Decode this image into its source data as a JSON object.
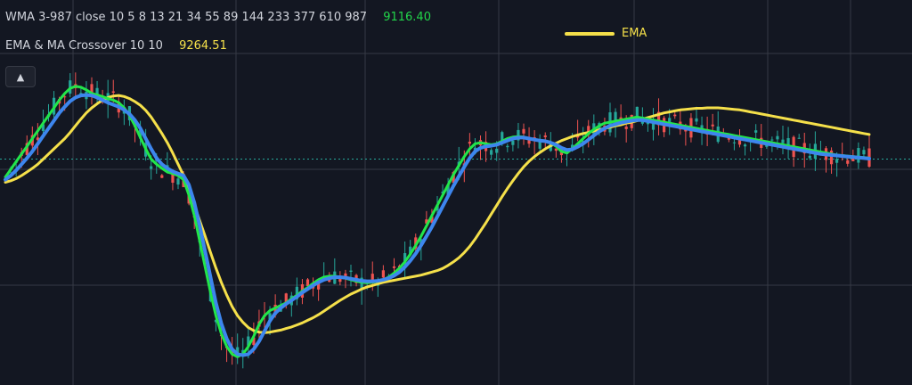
{
  "indicators": [
    {
      "label": "WMA 3-987 close 10 5 8 13 21 34 55 89 144 233 377 610 987",
      "value": "9116.40",
      "value_color": "#22d64a"
    },
    {
      "label": "EMA & MA Crossover 10 10",
      "value": "9264.51",
      "value_color": "#f5e04a"
    }
  ],
  "colors": {
    "background": "#131722",
    "grid": "#363a45",
    "up": "#26a69a",
    "down": "#ef5350",
    "ema": "#f5e04a",
    "green_line": "#22e64a",
    "blue_line": "#3d86ee",
    "price_line": "#26a69a"
  },
  "icons": {
    "collapse": "chevron-up-icon"
  },
  "chart_data": {
    "type": "line",
    "title": "",
    "xlabel": "",
    "ylabel": "",
    "grid": true,
    "legend_placement": "top-center",
    "ylim": [
      8850,
      9600
    ],
    "current_price": 9290,
    "x": [
      0,
      1,
      2,
      3,
      4,
      5,
      6,
      7,
      8,
      9,
      10,
      11,
      12,
      13,
      14,
      15,
      16,
      17,
      18,
      19,
      20,
      21,
      22,
      23,
      24,
      25,
      26,
      27,
      28,
      29,
      30,
      31,
      32,
      33,
      34,
      35,
      36,
      37,
      38,
      39,
      40,
      41,
      42,
      43,
      44,
      45,
      46,
      47,
      48,
      49,
      50,
      51,
      52,
      53,
      54,
      55,
      56,
      57,
      58,
      59,
      60,
      61,
      62,
      63,
      64,
      65,
      66,
      67,
      68,
      69,
      70,
      71,
      72,
      73,
      74,
      75,
      76,
      77,
      78,
      79,
      80,
      81,
      82,
      83,
      84,
      85,
      86,
      87,
      88,
      89,
      90,
      91,
      92,
      93,
      94,
      95,
      96,
      97,
      98,
      99,
      100,
      101,
      102,
      103,
      104,
      105,
      106,
      107,
      108,
      109,
      110,
      111,
      112,
      113,
      114,
      115,
      116,
      117,
      118,
      119,
      120,
      121,
      122,
      123,
      124,
      125,
      126,
      127,
      128,
      129,
      130,
      131,
      132,
      133,
      134,
      135,
      136,
      137,
      138,
      139,
      140,
      141,
      142,
      143,
      144,
      145,
      146,
      147,
      148,
      149,
      150,
      151,
      152,
      153,
      154,
      155,
      156,
      157,
      158,
      159,
      160
    ],
    "series": [
      {
        "name": "EMA",
        "color": "#f5e04a",
        "values": [
          9245,
          9248,
          9252,
          9258,
          9265,
          9272,
          9280,
          9290,
          9300,
          9310,
          9320,
          9330,
          9342,
          9355,
          9368,
          9380,
          9390,
          9398,
          9405,
          9410,
          9413,
          9414,
          9412,
          9408,
          9402,
          9395,
          9385,
          9372,
          9356,
          9340,
          9322,
          9302,
          9280,
          9258,
          9230,
          9200,
          9170,
          9140,
          9108,
          9078,
          9050,
          9025,
          9003,
          8985,
          8972,
          8962,
          8956,
          8953,
          8952,
          8953,
          8955,
          8957,
          8960,
          8963,
          8967,
          8971,
          8976,
          8981,
          8987,
          8994,
          9001,
          9008,
          9015,
          9021,
          9027,
          9032,
          9037,
          9041,
          9044,
          9047,
          9050,
          9052,
          9054,
          9056,
          9058,
          9060,
          9062,
          9064,
          9067,
          9070,
          9073,
          9077,
          9083,
          9090,
          9098,
          9108,
          9120,
          9134,
          9150,
          9166,
          9183,
          9200,
          9217,
          9233,
          9248,
          9262,
          9275,
          9286,
          9295,
          9303,
          9310,
          9316,
          9321,
          9326,
          9330,
          9334,
          9337,
          9340,
          9342,
          9345,
          9347,
          9350,
          9352,
          9355,
          9357,
          9360,
          9362,
          9365,
          9368,
          9371,
          9374,
          9377,
          9380,
          9382,
          9384,
          9386,
          9387,
          9388,
          9389,
          9389,
          9390,
          9390,
          9390,
          9389,
          9388,
          9387,
          9386,
          9384,
          9382,
          9380,
          9378,
          9376,
          9374,
          9372,
          9370,
          9368,
          9366,
          9364,
          9362,
          9360,
          9358,
          9356,
          9354,
          9352,
          9350,
          9348,
          9346,
          9344,
          9342,
          9340,
          9338
        ]
      },
      {
        "name": "",
        "color": "#22e64a",
        "values": [
          9255,
          9270,
          9285,
          9300,
          9315,
          9330,
          9345,
          9360,
          9375,
          9390,
          9405,
          9418,
          9428,
          9432,
          9430,
          9425,
          9418,
          9415,
          9412,
          9408,
          9405,
          9400,
          9390,
          9375,
          9355,
          9332,
          9310,
          9290,
          9280,
          9272,
          9265,
          9262,
          9258,
          9250,
          9220,
          9180,
          9130,
          9080,
          9030,
          8985,
          8950,
          8925,
          8910,
          8905,
          8910,
          8925,
          8945,
          8968,
          8985,
          8995,
          9000,
          9005,
          9010,
          9018,
          9025,
          9033,
          9040,
          9048,
          9055,
          9060,
          9062,
          9062,
          9060,
          9058,
          9055,
          9052,
          9050,
          9049,
          9050,
          9052,
          9055,
          9060,
          9068,
          9078,
          9090,
          9105,
          9122,
          9140,
          9160,
          9180,
          9200,
          9220,
          9240,
          9260,
          9278,
          9295,
          9310,
          9320,
          9322,
          9320,
          9318,
          9320,
          9325,
          9330,
          9333,
          9334,
          9333,
          9330,
          9328,
          9326,
          9325,
          9322,
          9315,
          9305,
          9302,
          9310,
          9320,
          9330,
          9340,
          9348,
          9355,
          9360,
          9362,
          9364,
          9366,
          9368,
          9370,
          9372,
          9370,
          9368,
          9366,
          9364,
          9362,
          9360,
          9358,
          9356,
          9354,
          9352,
          9350,
          9348,
          9346,
          9344,
          9342,
          9340,
          9338,
          9336,
          9334,
          9332,
          9330,
          9328,
          9326,
          9324,
          9322,
          9320,
          9318,
          9316,
          9314,
          9312,
          9310,
          9308,
          9306,
          9304,
          9302,
          9300,
          9298,
          9297,
          9296,
          9295,
          9294,
          9293,
          9292
        ]
      },
      {
        "name": "",
        "color": "#3d86ee",
        "values": [
          9250,
          9258,
          9268,
          9280,
          9292,
          9305,
          9320,
          9335,
          9350,
          9365,
          9380,
          9392,
          9403,
          9410,
          9414,
          9415,
          9414,
          9410,
          9405,
          9400,
          9396,
          9392,
          9386,
          9378,
          9366,
          9350,
          9330,
          9310,
          9292,
          9280,
          9272,
          9266,
          9262,
          9258,
          9240,
          9205,
          9160,
          9110,
          9060,
          9010,
          8970,
          8940,
          8920,
          8910,
          8908,
          8910,
          8920,
          8935,
          8955,
          8975,
          8990,
          9000,
          9008,
          9015,
          9022,
          9030,
          9037,
          9044,
          9050,
          9055,
          9058,
          9060,
          9060,
          9059,
          9057,
          9055,
          9053,
          9052,
          9052,
          9053,
          9055,
          9058,
          9063,
          9070,
          9080,
          9092,
          9106,
          9122,
          9140,
          9158,
          9178,
          9198,
          9218,
          9238,
          9257,
          9275,
          9292,
          9305,
          9312,
          9315,
          9316,
          9318,
          9322,
          9326,
          9330,
          9332,
          9332,
          9330,
          9328,
          9326,
          9325,
          9322,
          9318,
          9312,
          9308,
          9309,
          9314,
          9320,
          9328,
          9336,
          9344,
          9350,
          9355,
          9358,
          9361,
          9363,
          9365,
          9366,
          9366,
          9364,
          9362,
          9360,
          9358,
          9356,
          9354,
          9352,
          9350,
          9348,
          9346,
          9344,
          9342,
          9340,
          9338,
          9336,
          9334,
          9332,
          9330,
          9328,
          9326,
          9324,
          9322,
          9320,
          9318,
          9316,
          9314,
          9312,
          9310,
          9308,
          9306,
          9304,
          9302,
          9300,
          9299,
          9298,
          9297,
          9296,
          9295,
          9294,
          9293,
          9292,
          9291
        ]
      }
    ]
  }
}
